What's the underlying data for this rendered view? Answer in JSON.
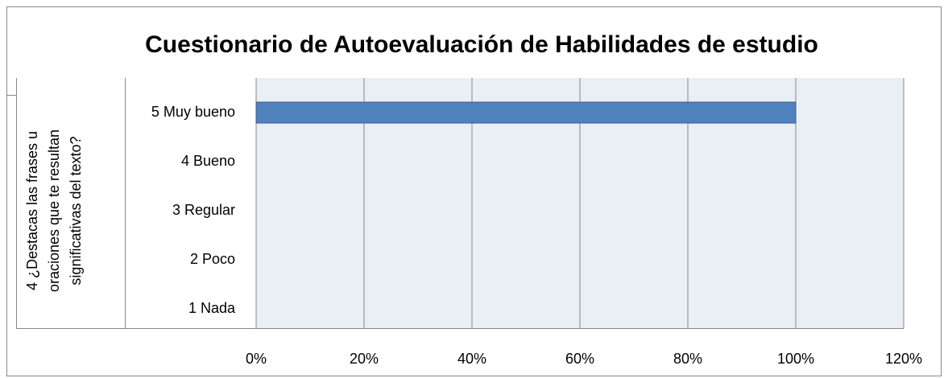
{
  "chart_data": {
    "type": "bar",
    "orientation": "horizontal",
    "title": "Cuestionario de Autoevaluación de Habilidades de estudio",
    "y_label_lines": [
      "4 ¿Destacas las frases u",
      "oraciones que te resultan",
      "significativas del texto?"
    ],
    "categories": [
      "5 Muy bueno",
      "4 Bueno",
      "3 Regular",
      "2 Poco",
      "1 Nada"
    ],
    "values": [
      100,
      0,
      0,
      0,
      0
    ],
    "color": "#4f81bd",
    "xlim": [
      0,
      120
    ],
    "xticks": [
      {
        "value": 0,
        "label": "0%"
      },
      {
        "value": 20,
        "label": "20%"
      },
      {
        "value": 40,
        "label": "40%"
      },
      {
        "value": 60,
        "label": "60%"
      },
      {
        "value": 80,
        "label": "80%"
      },
      {
        "value": 100,
        "label": "100%"
      },
      {
        "value": 120,
        "label": "120%"
      }
    ],
    "grid": true
  }
}
